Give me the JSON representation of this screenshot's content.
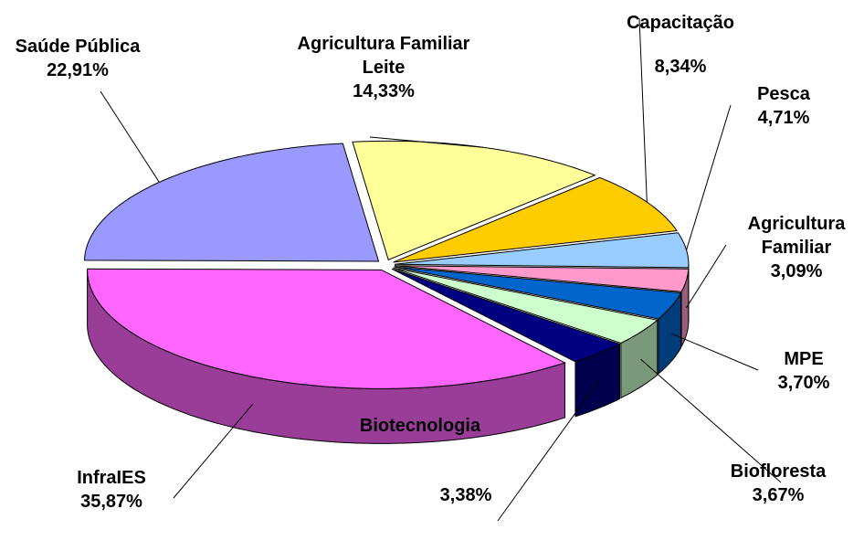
{
  "chart_data": {
    "type": "pie3d",
    "categories": [
      "Agricultura Familiar Leite",
      "Capacitação",
      "Pesca",
      "Agricultura Familiar",
      "MPE",
      "Biofloresta",
      "Biotecnologia",
      "InfraIES",
      "Saúde Pública"
    ],
    "values": [
      14.33,
      8.34,
      4.71,
      3.09,
      3.7,
      3.67,
      3.38,
      35.87,
      22.91
    ],
    "value_labels": [
      "14,33%",
      "8,34%",
      "4,71%",
      "3,09%",
      "3,70%",
      "3,67%",
      "3,38%",
      "35,87%",
      "22,91%"
    ],
    "colors": [
      "#ffff99",
      "#ffcc00",
      "#99ccff",
      "#ff99cc",
      "#0066cc",
      "#ccffcc",
      "#000080",
      "#ff66ff",
      "#9999ff"
    ]
  }
}
